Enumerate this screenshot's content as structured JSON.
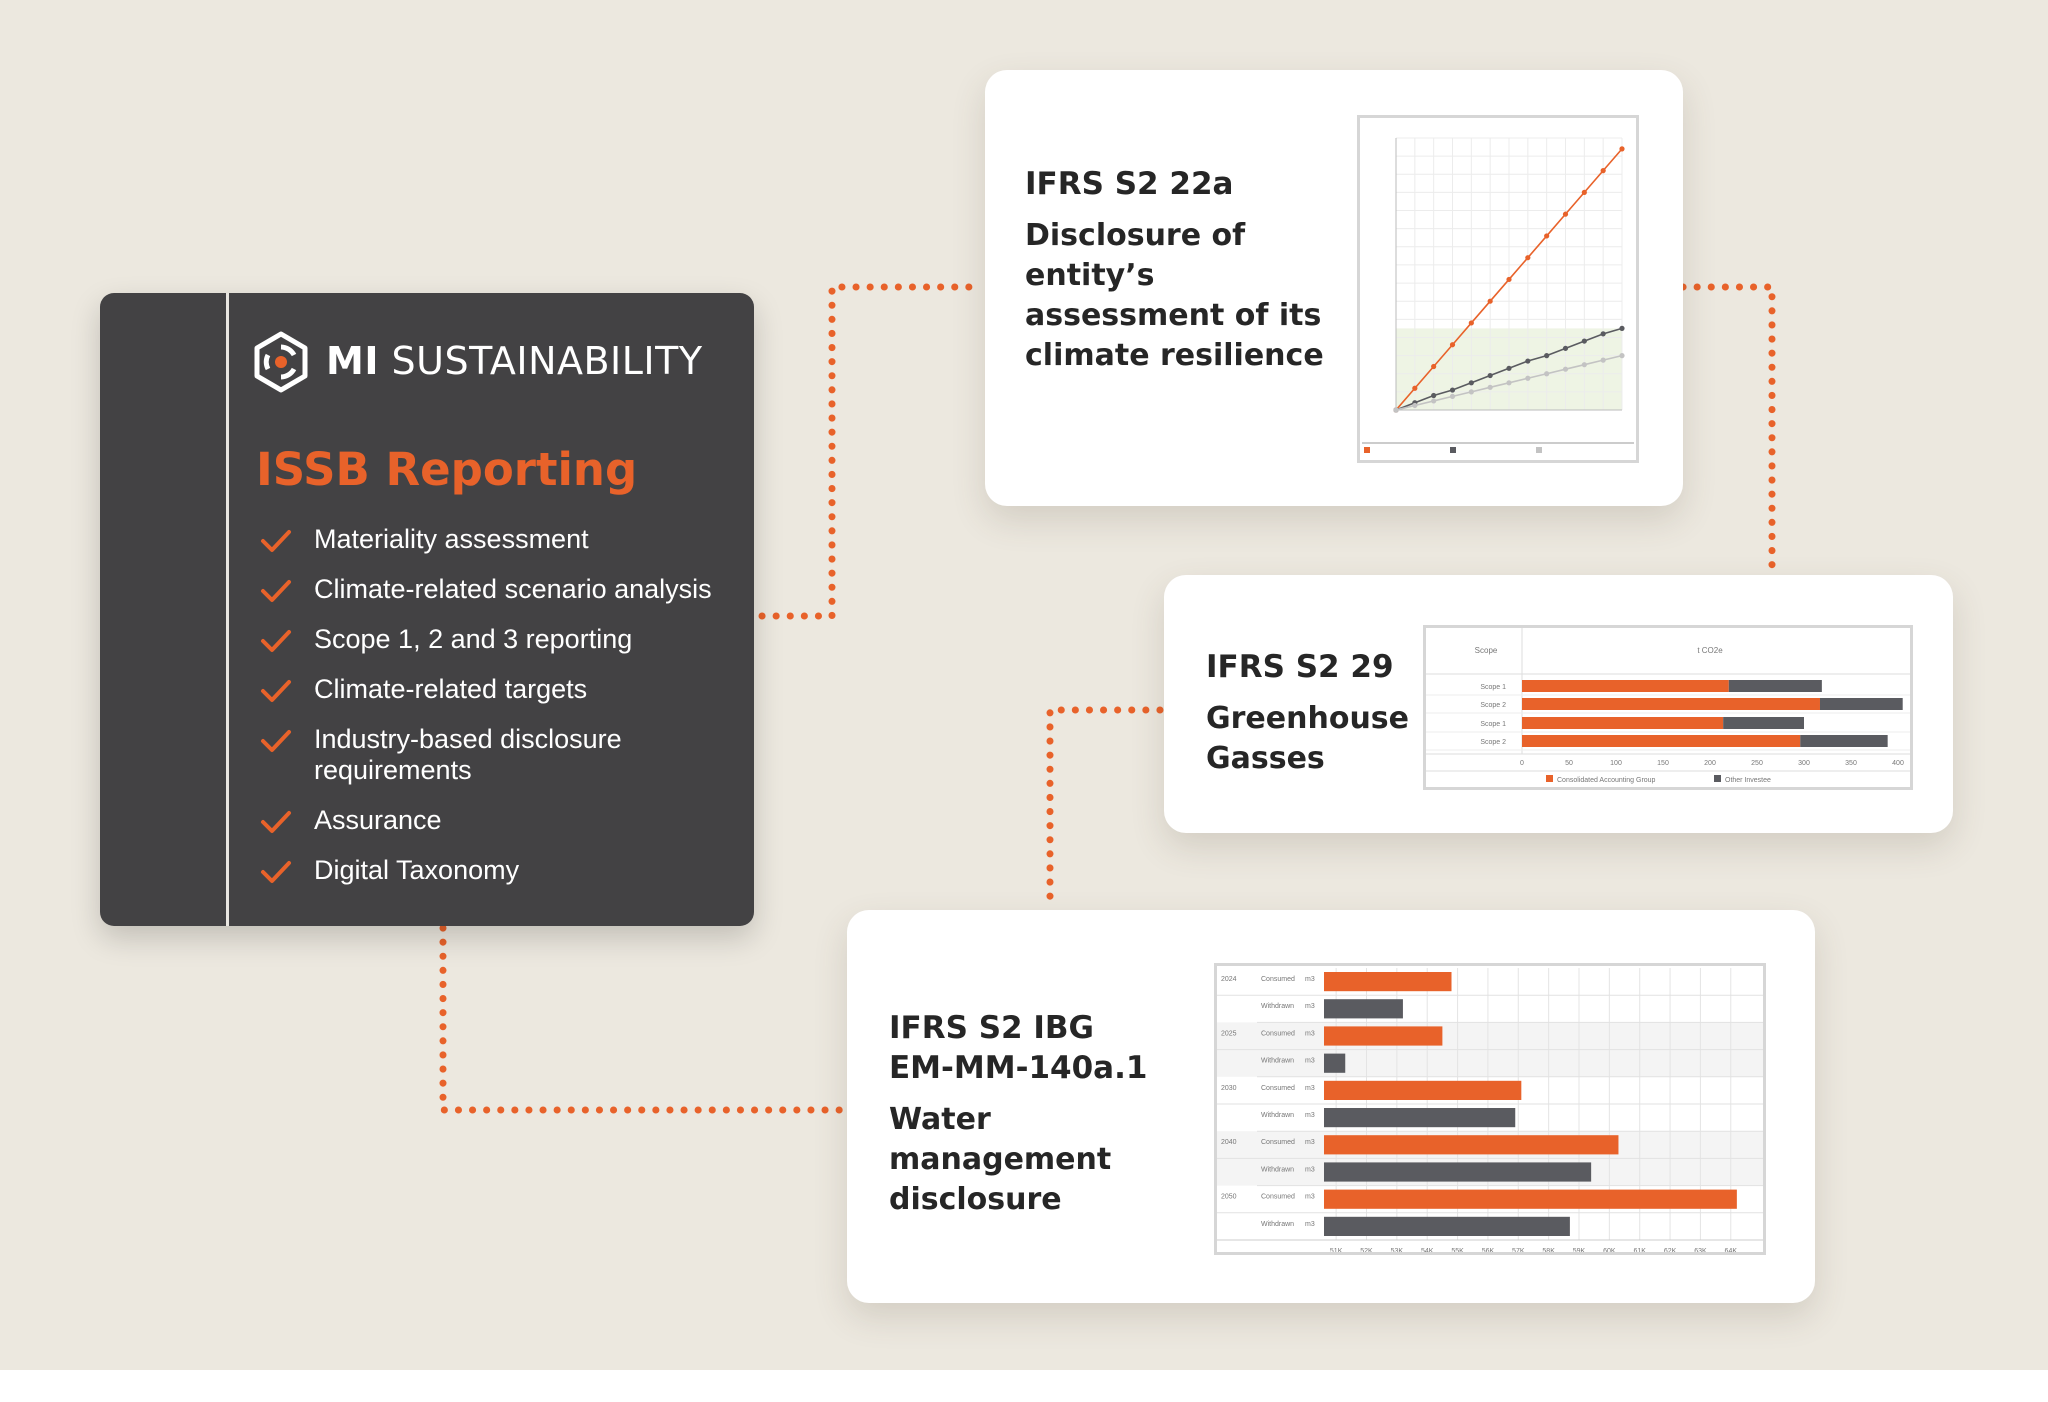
{
  "brand": {
    "logo_icon": "mi-hexagon-icon",
    "name_bold": "MI",
    "name_light": "SUSTAINABILITY"
  },
  "panel": {
    "title": "ISSB Reporting",
    "items": [
      {
        "label": "Materiality assessment"
      },
      {
        "label": "Climate-related scenario analysis"
      },
      {
        "label": "Scope 1, 2 and 3 reporting"
      },
      {
        "label": "Climate-related targets"
      },
      {
        "label": "Industry-based disclosure requirements"
      },
      {
        "label": "Assurance"
      },
      {
        "label": "Digital Taxonomy"
      }
    ]
  },
  "cards": {
    "resilience": {
      "title": "IFRS S2 22a",
      "subtitle": "Disclosure of entity’s assessment of its climate resilience"
    },
    "ghg": {
      "title": "IFRS S2 29",
      "subtitle": "Greenhouse Gasses"
    },
    "water": {
      "title": "IFRS S2 IBG EM-MM-140a.1",
      "subtitle": "Water management disclosure"
    }
  },
  "colors": {
    "orange": "#e8622a",
    "dark_gray": "#5a5b60",
    "light_gray": "#c3c3c3",
    "panel_bg": "#434244",
    "background": "#ece8df"
  },
  "chart_data": [
    {
      "type": "line",
      "x": [
        0,
        10,
        20,
        30,
        40,
        50,
        60,
        70,
        80,
        90,
        100,
        110,
        120
      ],
      "series": [
        {
          "values": [
            0,
            12,
            24,
            36,
            48,
            60,
            72,
            84,
            96,
            108,
            120,
            132,
            144
          ]
        },
        {
          "values": [
            0,
            4,
            8,
            11,
            15,
            19,
            23,
            27,
            30,
            34,
            38,
            42,
            45
          ]
        },
        {
          "values": [
            0,
            2.5,
            5,
            7.5,
            10,
            12.5,
            15,
            17.5,
            20,
            22.5,
            25,
            27.5,
            30
          ]
        }
      ],
      "band_max": 45,
      "xlim": [
        0,
        120
      ],
      "ylim": [
        0,
        150
      ],
      "grid": true,
      "legend": "bottom"
    },
    {
      "type": "bar",
      "orientation": "horizontal",
      "stacked": true,
      "header": [
        "Scope",
        "t CO2e"
      ],
      "categories": [
        "Scope 1",
        "Scope 2",
        "Scope 1",
        "Scope 2"
      ],
      "series": [
        {
          "name": "Consolidated Accounting Group",
          "values": [
            220,
            317,
            214,
            296
          ]
        },
        {
          "name": "Other Investee",
          "values": [
            99,
            88,
            86,
            93
          ]
        }
      ],
      "xticks": [
        0,
        50,
        100,
        150,
        200,
        250,
        300,
        350,
        400
      ],
      "xlim": [
        0,
        400
      ],
      "legend": "bottom"
    },
    {
      "type": "bar",
      "orientation": "horizontal",
      "rows": [
        {
          "year": "2024",
          "type": "Consumed",
          "unit": "m3",
          "value": 54800
        },
        {
          "type": "Withdrawn",
          "unit": "m3",
          "value": 53200
        },
        {
          "year": "2025",
          "type": "Consumed",
          "unit": "m3",
          "value": 54500
        },
        {
          "type": "Withdrawn",
          "unit": "m3",
          "value": 51300
        },
        {
          "year": "2030",
          "type": "Consumed",
          "unit": "m3",
          "value": 57100
        },
        {
          "type": "Withdrawn",
          "unit": "m3",
          "value": 56900
        },
        {
          "year": "2040",
          "type": "Consumed",
          "unit": "m3",
          "value": 60300
        },
        {
          "type": "Withdrawn",
          "unit": "m3",
          "value": 59400
        },
        {
          "year": "2050",
          "type": "Consumed",
          "unit": "m3",
          "value": 64200
        },
        {
          "type": "Withdrawn",
          "unit": "m3",
          "value": 58700
        }
      ],
      "xticks": [
        "51K",
        "52K",
        "53K",
        "54K",
        "55K",
        "56K",
        "57K",
        "58K",
        "59K",
        "60K",
        "61K",
        "62K",
        "63K",
        "64K"
      ],
      "xlim": [
        50600,
        64600
      ],
      "grid": true
    }
  ]
}
